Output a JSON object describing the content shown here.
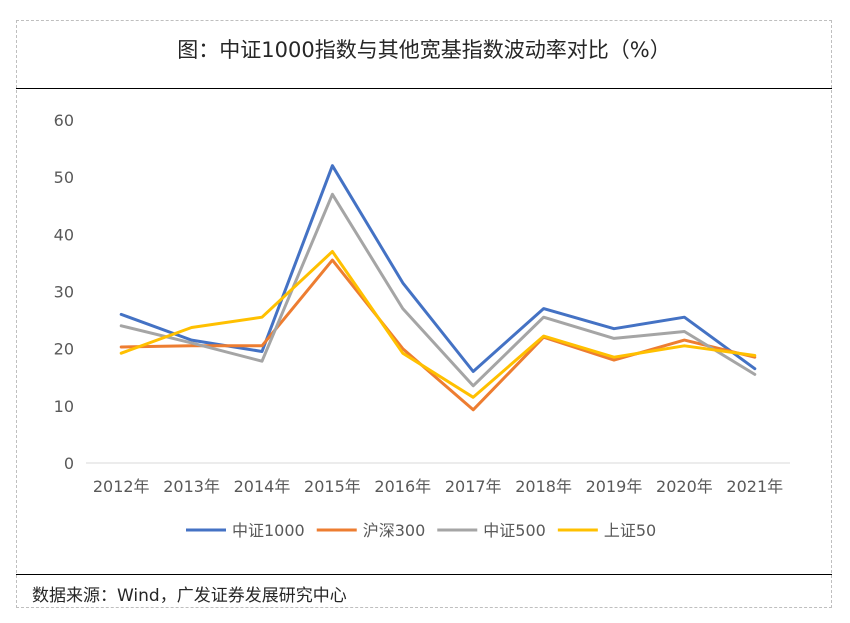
{
  "title": "图：中证1000指数与其他宽基指数波动率对比（%）",
  "source": "数据来源：Wind，广发证券发展研究中心",
  "chart_data": {
    "type": "line",
    "categories": [
      "2012年",
      "2013年",
      "2014年",
      "2015年",
      "2016年",
      "2017年",
      "2018年",
      "2019年",
      "2020年",
      "2021年"
    ],
    "ylim": [
      0,
      60
    ],
    "yticks": [
      0,
      10,
      20,
      30,
      40,
      50,
      60
    ],
    "grid": false,
    "legend_position": "bottom",
    "series": [
      {
        "name": "中证1000",
        "color": "#4472C4",
        "values": [
          26.0,
          21.5,
          19.5,
          52.0,
          31.5,
          16.0,
          27.0,
          23.5,
          25.5,
          16.5
        ]
      },
      {
        "name": "沪深300",
        "color": "#ED7D31",
        "values": [
          20.3,
          20.5,
          20.5,
          35.5,
          20.0,
          9.3,
          22.0,
          18.0,
          21.5,
          18.5
        ]
      },
      {
        "name": "中证500",
        "color": "#A5A5A5",
        "values": [
          24.0,
          21.0,
          17.8,
          47.0,
          27.0,
          13.5,
          25.5,
          21.8,
          23.0,
          15.5
        ]
      },
      {
        "name": "上证50",
        "color": "#FFC000",
        "values": [
          19.2,
          23.7,
          25.5,
          37.0,
          19.2,
          11.5,
          22.2,
          18.5,
          20.5,
          18.8
        ]
      }
    ]
  }
}
